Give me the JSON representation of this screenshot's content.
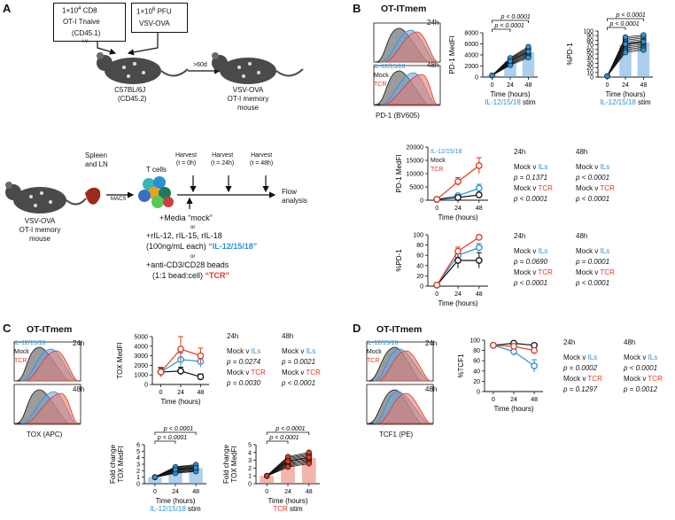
{
  "panels": {
    "a": "A",
    "b": "B",
    "c": "C",
    "d": "D"
  },
  "a": {
    "box1": [
      "1×10",
      "4",
      " CD8",
      "OT-I Tnaive",
      "(CD45.1)"
    ],
    "box2": [
      "1×10",
      "6",
      " PFU",
      "VSV-OVA"
    ],
    "iv": "i.v.",
    "days": ">60d",
    "host": [
      "C57BL/6J",
      "(CD45.2)"
    ],
    "mem": [
      "VSV-OVA",
      "OT-I memory",
      "mouse"
    ],
    "mouse2": [
      "VSV-OVA",
      "OT-I memory",
      "mouse"
    ],
    "spleen": [
      "Spleen",
      "and LN"
    ],
    "macs": "MACS",
    "tcells": "T cells",
    "harvest": [
      [
        "Harvest",
        "(t = 0h)"
      ],
      [
        "Harvest",
        "(t = 24h)"
      ],
      [
        "Harvest",
        "(t = 48h)"
      ]
    ],
    "flow": [
      "Flow",
      "analysis"
    ],
    "media": "+Media “mock”",
    "or1": "or",
    "ils1": "+rIL-12, rIL-15, rIL-18",
    "ils2a": "(100ng/mL each) ",
    "ils2b": "“IL-12/15/18”",
    "or2": "or",
    "tcr1": "+anti-CD3/CD28 beads",
    "tcr2a": "(1:1 bead:cell) ",
    "tcr2b": "“TCR”"
  },
  "colors": {
    "blue": "#2a90d6",
    "red": "#e2361b",
    "black": "#111111",
    "gray": "#8a8a8a"
  },
  "b": {
    "title": "OT-ITmem",
    "hist_24": "24h",
    "hist_48": "48h",
    "legend": [
      "IL-12/15/18",
      "Mock",
      "TCR"
    ],
    "hist_axis": "PD-1 (BV605)",
    "scatter1": {
      "ylabel": "PD-1 MedFI",
      "yticks": [
        "0",
        "2000",
        "4000",
        "6000",
        "8000"
      ],
      "ymax": 8000,
      "xticks": [
        "0",
        "24",
        "48"
      ],
      "xlabel": "Time (hours)",
      "stim": "IL-12/15/18 stim",
      "p1": "p < 0.0001",
      "p2": "p < 0.0001"
    },
    "scatter2": {
      "ylabel": "%PD-1",
      "yticks": [
        "0",
        "10",
        "20",
        "30",
        "40",
        "50",
        "60",
        "70",
        "80",
        "90",
        "100"
      ],
      "ymax": 100,
      "xticks": [
        "0",
        "24",
        "48"
      ],
      "xlabel": "Time (hours)",
      "stim": "IL-12/15/18 stim",
      "p1": "p < 0.0001",
      "p2": "p < 0.0001"
    },
    "line1": {
      "ylabel": "PD-1 MedFI",
      "yticks": [
        "0",
        "5000",
        "10000",
        "15000",
        "20000"
      ],
      "ymax": 20000,
      "xticks": [
        "0",
        "24",
        "48"
      ],
      "xlabel": "Time (hours)",
      "legend": [
        "IL-12/15/18",
        "Mock",
        "TCR"
      ]
    },
    "line2": {
      "ylabel": "%PD-1",
      "yticks": [
        "0",
        "20",
        "40",
        "60",
        "80",
        "100"
      ],
      "ymax": 100,
      "xticks": [
        "0",
        "24",
        "48"
      ],
      "xlabel": "Time (hours)"
    },
    "stats1": {
      "h24": "24h",
      "h48": "48h",
      "c1": [
        "Mock v ",
        "ILs"
      ],
      "p24a": "p = 0.1371",
      "c2": [
        "Mock v ",
        "TCR"
      ],
      "p24b": "p < 0.0001",
      "p48a": "p < 0.0001",
      "p48b": "p < 0.0001"
    },
    "stats2": {
      "h24": "24h",
      "h48": "48h",
      "c1": [
        "Mock v ",
        "ILs"
      ],
      "p24a": "p = 0.0690",
      "c2": [
        "Mock v ",
        "TCR"
      ],
      "p24b": "p < 0.0001",
      "p48a": "p = 0.0001",
      "p48b": "p < 0.0001"
    }
  },
  "c": {
    "title": "OT-ITmem",
    "hist_24": "24h",
    "hist_48": "48h",
    "legend": [
      "IL-12/15/18",
      "Mock",
      "TCR"
    ],
    "hist_axis": "TOX (APC)",
    "line": {
      "ylabel": "TOX MedFI",
      "yticks": [
        "0",
        "1000",
        "2000",
        "3000",
        "4000",
        "5000"
      ],
      "ymax": 5000,
      "xticks": [
        "0",
        "24",
        "48"
      ],
      "xlabel": "Time (hours)"
    },
    "stats": {
      "h24": "24h",
      "h48": "48h",
      "c1": [
        "Mock v ",
        "ILs"
      ],
      "p24a": "p = 0.0274",
      "c2": [
        "Mock v ",
        "TCR"
      ],
      "p24b": "p = 0.0030",
      "p48a": "p = 0.0021",
      "p48b": "p < 0.0001"
    },
    "fold1": {
      "ylabel": [
        "Fold change",
        "TOX MedFI"
      ],
      "yticks": [
        "0",
        "1",
        "2",
        "3",
        "4",
        "5",
        "6"
      ],
      "ymax": 6,
      "xticks": [
        "0",
        "24",
        "48"
      ],
      "xlabel": "Time (hours)",
      "stim": "IL-12/15/18 stim",
      "p1": "p < 0.0001",
      "p2": "p < 0.0001"
    },
    "fold2": {
      "ylabel": [
        "Fold change",
        "TOX MedFI"
      ],
      "yticks": [
        "0",
        "1",
        "2",
        "3",
        "4",
        "5"
      ],
      "ymax": 5,
      "xticks": [
        "0",
        "24",
        "48"
      ],
      "xlabel": "Time (hours)",
      "stim": "TCR stim",
      "p1": "p < 0.0001",
      "p2": "p < 0.0001"
    }
  },
  "d": {
    "title": "OT-ITmem",
    "hist_24": "24h",
    "hist_48": "48h",
    "legend": [
      "IL-12/15/18",
      "Mock",
      "TCR"
    ],
    "hist_axis": "TCF1 (PE)",
    "line": {
      "ylabel": "%TCF1",
      "yticks": [
        "0",
        "20",
        "40",
        "60",
        "80",
        "100"
      ],
      "ymax": 100,
      "xticks": [
        "0",
        "24",
        "48"
      ],
      "xlabel": "Time (hours)"
    },
    "stats": {
      "h24": "24h",
      "h48": "48h",
      "c1": [
        "Mock v ",
        "ILs"
      ],
      "p24a": "p = 0.0002",
      "c2": [
        "Mock v ",
        "TCR"
      ],
      "p24b": "p = 0.1297",
      "p48a": "p < 0.0001",
      "p48b": "p = 0.0012"
    }
  },
  "chart_data": [
    {
      "type": "line",
      "title": "PD-1 MedFI (B)",
      "x": [
        0,
        24,
        48
      ],
      "ylim": [
        0,
        20000
      ],
      "series": [
        {
          "name": "IL-12/15/18",
          "values": [
            300,
            1700,
            4500
          ],
          "err": [
            100,
            600,
            1500
          ]
        },
        {
          "name": "Mock",
          "values": [
            300,
            1000,
            2000
          ],
          "err": [
            100,
            400,
            700
          ]
        },
        {
          "name": "TCR",
          "values": [
            300,
            7000,
            13000
          ],
          "err": [
            100,
            1500,
            3000
          ]
        }
      ]
    },
    {
      "type": "line",
      "title": "%PD-1 (B)",
      "x": [
        0,
        24,
        48
      ],
      "ylim": [
        0,
        100
      ],
      "series": [
        {
          "name": "IL-12/15/18",
          "values": [
            2,
            60,
            75
          ],
          "err": [
            1,
            10,
            8
          ]
        },
        {
          "name": "Mock",
          "values": [
            2,
            50,
            50
          ],
          "err": [
            1,
            15,
            15
          ]
        },
        {
          "name": "TCR",
          "values": [
            2,
            68,
            95
          ],
          "err": [
            1,
            8,
            3
          ]
        }
      ]
    },
    {
      "type": "line",
      "title": "TOX MedFI (C)",
      "x": [
        0,
        24,
        48
      ],
      "ylim": [
        0,
        5000
      ],
      "series": [
        {
          "name": "IL-12/15/18",
          "values": [
            1300,
            2600,
            2400
          ],
          "err": [
            500,
            700,
            600
          ]
        },
        {
          "name": "Mock",
          "values": [
            1300,
            1400,
            800
          ],
          "err": [
            400,
            400,
            300
          ]
        },
        {
          "name": "TCR",
          "values": [
            1300,
            3700,
            3000
          ],
          "err": [
            500,
            1300,
            800
          ]
        }
      ]
    },
    {
      "type": "line",
      "title": "%TCF1 (D)",
      "x": [
        0,
        24,
        48
      ],
      "ylim": [
        0,
        100
      ],
      "series": [
        {
          "name": "IL-12/15/18",
          "values": [
            90,
            78,
            50
          ],
          "err": [
            4,
            8,
            12
          ]
        },
        {
          "name": "Mock",
          "values": [
            90,
            94,
            90
          ],
          "err": [
            3,
            3,
            4
          ]
        },
        {
          "name": "TCR",
          "values": [
            90,
            88,
            80
          ],
          "err": [
            3,
            4,
            5
          ]
        }
      ]
    },
    {
      "type": "bar",
      "title": "PD-1 MedFI IL-12/15/18 stim",
      "categories": [
        "0",
        "24",
        "48"
      ],
      "values": [
        300,
        2800,
        4500
      ],
      "ylim": [
        0,
        8000
      ]
    },
    {
      "type": "bar",
      "title": "%PD-1 IL-12/15/18 stim",
      "categories": [
        "0",
        "24",
        "48"
      ],
      "values": [
        2,
        70,
        75
      ],
      "ylim": [
        0,
        100
      ]
    },
    {
      "type": "bar",
      "title": "Fold change TOX MedFI IL-12/15/18 stim",
      "categories": [
        "0",
        "24",
        "48"
      ],
      "values": [
        1,
        2.1,
        2.4
      ],
      "ylim": [
        0,
        6
      ]
    },
    {
      "type": "bar",
      "title": "Fold change TOX MedFI TCR stim",
      "categories": [
        "0",
        "24",
        "48"
      ],
      "values": [
        1,
        2.8,
        3.3
      ],
      "ylim": [
        0,
        5
      ]
    }
  ]
}
